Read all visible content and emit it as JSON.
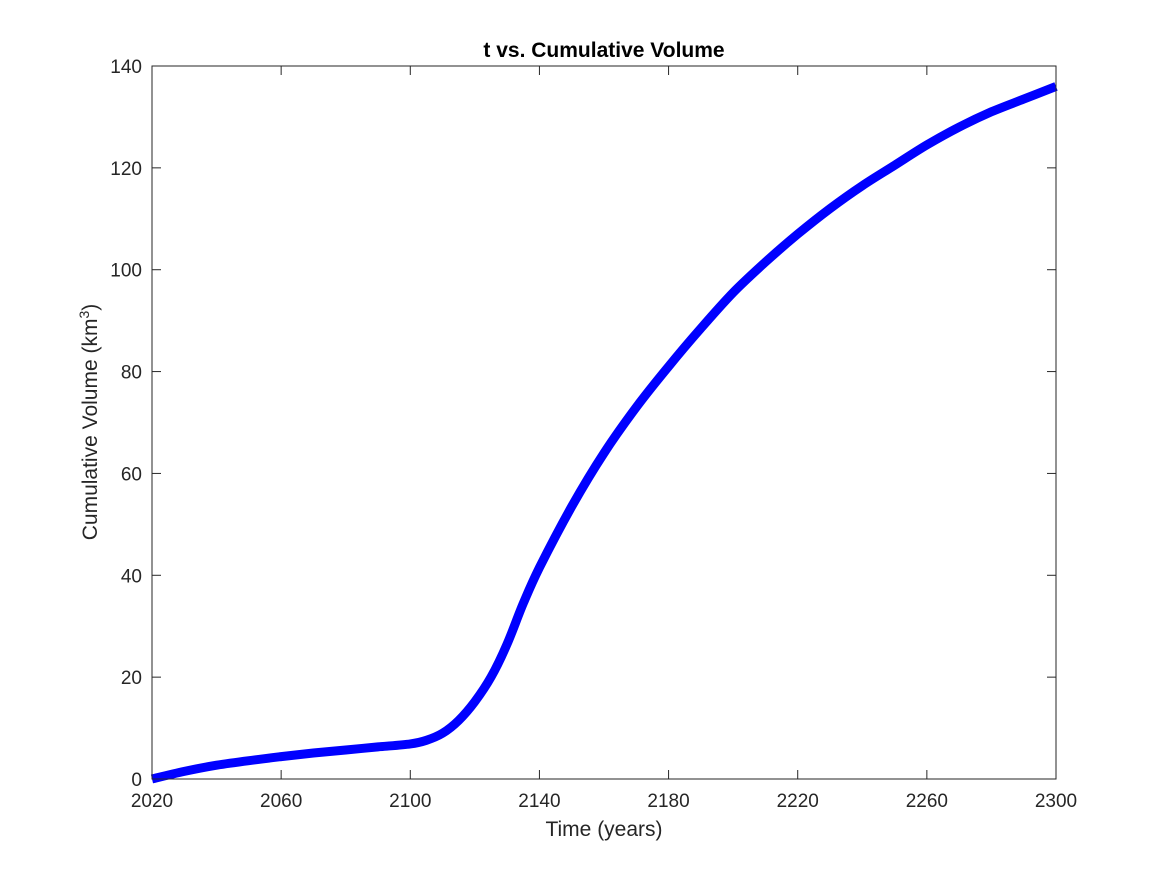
{
  "chart_data": {
    "type": "line",
    "title": "t vs. Cumulative Volume",
    "xlabel": "Time (years)",
    "ylabel": "Cumulative Volume (km",
    "ylabel_superscript": "3",
    "ylabel_suffix": ")",
    "xlim": [
      2020,
      2300
    ],
    "ylim": [
      0,
      140
    ],
    "xticks": [
      2020,
      2060,
      2100,
      2140,
      2180,
      2220,
      2260,
      2300
    ],
    "yticks": [
      0,
      20,
      40,
      60,
      80,
      100,
      120,
      140
    ],
    "grid": false,
    "line_color": "#0000ff",
    "axis_color": "#262626",
    "series": [
      {
        "x": [
          2020,
          2030,
          2040,
          2050,
          2060,
          2070,
          2080,
          2090,
          2100,
          2105,
          2110,
          2115,
          2120,
          2125,
          2130,
          2135,
          2140,
          2150,
          2160,
          2170,
          2180,
          2190,
          2200,
          2210,
          2220,
          2230,
          2240,
          2250,
          2260,
          2270,
          2280,
          2290,
          2300
        ],
        "values": [
          0,
          1.5,
          2.7,
          3.6,
          4.4,
          5.1,
          5.7,
          6.3,
          6.9,
          7.6,
          9.0,
          11.5,
          15.2,
          20.0,
          26.5,
          34.5,
          41.5,
          53.5,
          64.0,
          73.0,
          81.0,
          88.5,
          95.5,
          101.5,
          107.0,
          112.0,
          116.5,
          120.5,
          124.5,
          128.0,
          131.0,
          133.5,
          136.0
        ]
      }
    ]
  }
}
